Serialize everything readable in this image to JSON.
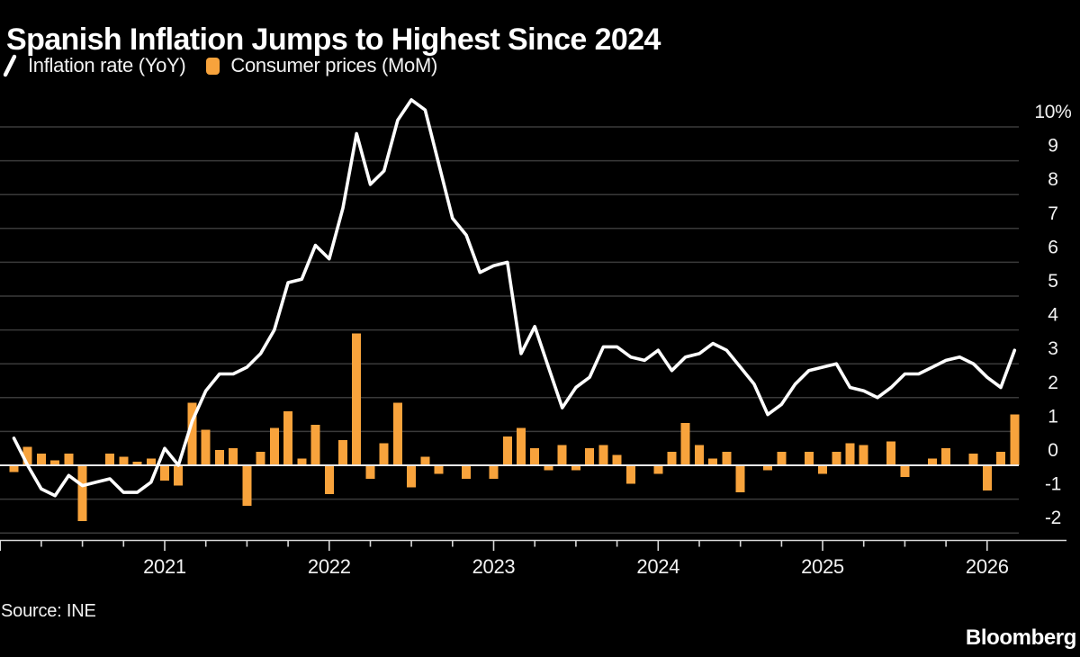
{
  "header": {
    "title": "Spanish Inflation Jumps to Highest Since 2024"
  },
  "footer": {
    "source": "Source: INE",
    "brand": "Bloomberg"
  },
  "colors": {
    "background": "#000000",
    "grid": "#3a3a3a",
    "zero_line": "#e8e8e8",
    "axis": "#d9d9d9",
    "text": "#f2f2f2",
    "line_series": "#ffffff",
    "bar_series": "#f8a33c"
  },
  "chart_data": {
    "type": "line+bar",
    "title": "Spanish Inflation Jumps to Highest Since 2024",
    "x_start": "2020-02",
    "x_frequency": "monthly",
    "grid": true,
    "legend_position": "top-left",
    "ylim": [
      -2.45,
      10.9
    ],
    "y_ticks": [
      {
        "value": 10,
        "label": "10%"
      },
      {
        "value": 9,
        "label": "9"
      },
      {
        "value": 8,
        "label": "8"
      },
      {
        "value": 7,
        "label": "7"
      },
      {
        "value": 6,
        "label": "6"
      },
      {
        "value": 5,
        "label": "5"
      },
      {
        "value": 4,
        "label": "4"
      },
      {
        "value": 3,
        "label": "3"
      },
      {
        "value": 2,
        "label": "2"
      },
      {
        "value": 1,
        "label": "1"
      },
      {
        "value": 0,
        "label": "0"
      },
      {
        "value": -1,
        "label": "-1"
      },
      {
        "value": -2,
        "label": "-2"
      }
    ],
    "x_year_ticks": [
      {
        "label": "2021",
        "month_index": 11
      },
      {
        "label": "2022",
        "month_index": 23
      },
      {
        "label": "2023",
        "month_index": 35
      },
      {
        "label": "2024",
        "month_index": 47
      },
      {
        "label": "2025",
        "month_index": 59
      },
      {
        "label": "2026",
        "month_index": 71
      }
    ],
    "series": [
      {
        "name": "Inflation rate (YoY)",
        "type": "line",
        "color": "#ffffff",
        "values": [
          0.8,
          0.0,
          -0.7,
          -0.9,
          -0.3,
          -0.6,
          -0.5,
          -0.4,
          -0.8,
          -0.8,
          -0.5,
          0.5,
          0.0,
          1.3,
          2.2,
          2.7,
          2.7,
          2.9,
          3.3,
          4.0,
          5.4,
          5.5,
          6.5,
          6.1,
          7.6,
          9.8,
          8.3,
          8.7,
          10.2,
          10.8,
          10.5,
          8.9,
          7.3,
          6.8,
          5.7,
          5.9,
          6.0,
          3.3,
          4.1,
          2.9,
          1.7,
          2.3,
          2.6,
          3.5,
          3.5,
          3.2,
          3.1,
          3.4,
          2.8,
          3.2,
          3.3,
          3.6,
          3.4,
          2.9,
          2.4,
          1.5,
          1.8,
          2.4,
          2.8,
          2.9,
          3.0,
          2.3,
          2.2,
          2.0,
          2.3,
          2.7,
          2.7,
          2.9,
          3.1,
          3.2,
          3.0,
          2.6,
          2.3,
          3.4
        ]
      },
      {
        "name": "Consumer prices (MoM)",
        "type": "bar",
        "color": "#f8a33c",
        "values": [
          -0.2,
          0.55,
          0.35,
          0.15,
          0.35,
          -1.65,
          0.0,
          0.35,
          0.25,
          0.1,
          0.2,
          -0.45,
          -0.6,
          1.85,
          1.05,
          0.45,
          0.5,
          -1.2,
          0.4,
          1.1,
          1.6,
          0.2,
          1.2,
          -0.85,
          0.75,
          3.9,
          -0.4,
          0.65,
          1.85,
          -0.65,
          0.25,
          -0.25,
          0.0,
          -0.4,
          0.0,
          -0.4,
          0.85,
          1.1,
          0.5,
          -0.15,
          0.6,
          -0.15,
          0.5,
          0.6,
          0.3,
          -0.55,
          0.0,
          -0.25,
          0.4,
          1.25,
          0.6,
          0.2,
          0.4,
          -0.8,
          0.0,
          -0.15,
          0.4,
          0.0,
          0.4,
          -0.25,
          0.4,
          0.65,
          0.6,
          0.0,
          0.7,
          -0.35,
          0.0,
          0.2,
          0.5,
          0.0,
          0.35,
          -0.75,
          0.4,
          1.5
        ]
      }
    ]
  }
}
